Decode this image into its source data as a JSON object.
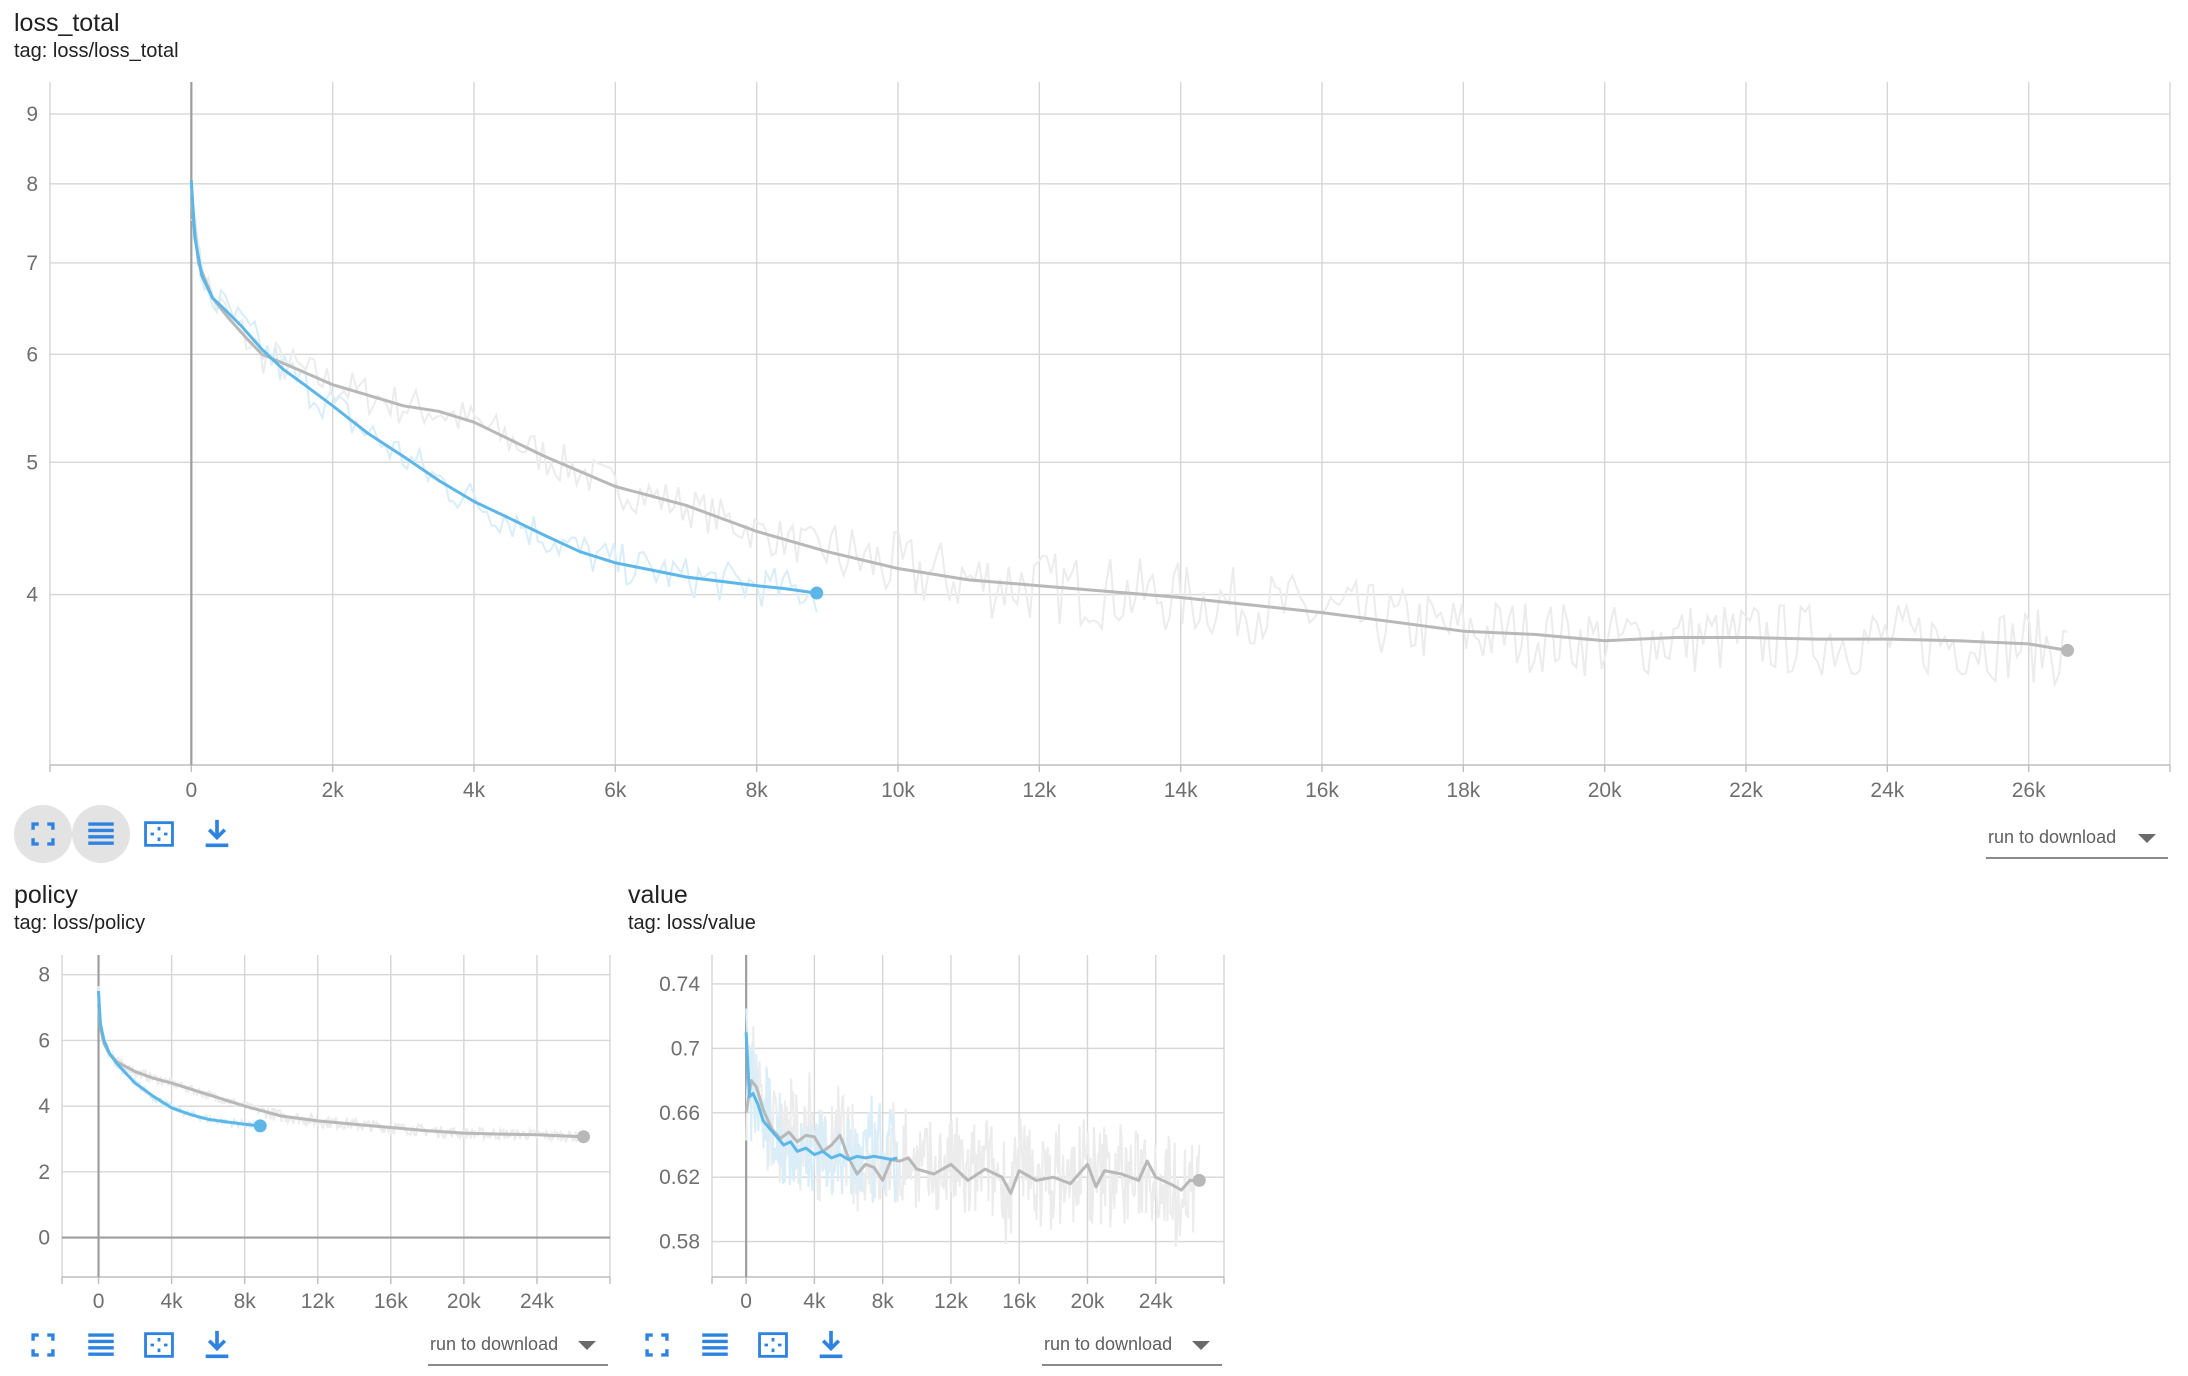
{
  "colors": {
    "run_a": "#5cb7e8",
    "run_b": "#b8b8b8",
    "run_a_raw": "#d9eef9",
    "run_b_raw": "#ececec"
  },
  "toolbar": {
    "fullscreen_icon": "fullscreen-icon",
    "legend_icon": "list-icon",
    "fit_icon": "fit-domain-icon",
    "download_icon": "download-icon",
    "download_label": "run to download"
  },
  "cards": [
    {
      "id": "loss_total",
      "title": "loss_total",
      "tag": "tag: loss/loss_total",
      "chart_data": {
        "type": "line",
        "yscale": "log",
        "xlim": [
          -2000,
          28000
        ],
        "ylim": [
          3.0,
          9.5
        ],
        "xticks": [
          0,
          2000,
          4000,
          6000,
          8000,
          10000,
          12000,
          14000,
          16000,
          18000,
          20000,
          22000,
          24000,
          26000
        ],
        "xtick_labels": [
          "0",
          "2k",
          "4k",
          "6k",
          "8k",
          "10k",
          "12k",
          "14k",
          "16k",
          "18k",
          "20k",
          "22k",
          "24k",
          "26k"
        ],
        "yticks": [
          4,
          5,
          6,
          7,
          8,
          9
        ],
        "ytick_labels": [
          "4",
          "5",
          "6",
          "7",
          "8",
          "9"
        ],
        "series": [
          {
            "color_key": "run_a",
            "end_marker": true,
            "x": [
              0,
              50,
              150,
              300,
              500,
              700,
              1000,
              1300,
              1600,
              2000,
              2500,
              3000,
              3500,
              4000,
              4500,
              5000,
              5500,
              6000,
              6500,
              7000,
              7500,
              8000,
              8400,
              8850
            ],
            "y": [
              8.05,
              7.3,
              6.85,
              6.6,
              6.45,
              6.3,
              6.05,
              5.85,
              5.7,
              5.5,
              5.25,
              5.05,
              4.85,
              4.68,
              4.55,
              4.42,
              4.3,
              4.22,
              4.17,
              4.12,
              4.09,
              4.06,
              4.04,
              4.01
            ]
          },
          {
            "color_key": "run_b",
            "end_marker": true,
            "x": [
              0,
              100,
              300,
              500,
              800,
              1000,
              1500,
              2000,
              2500,
              3000,
              3500,
              4000,
              5000,
              6000,
              7000,
              8000,
              9000,
              10000,
              11000,
              12000,
              13000,
              14000,
              15000,
              16000,
              17000,
              18000,
              19000,
              20000,
              21000,
              22000,
              23000,
              24000,
              25000,
              26000,
              26550
            ],
            "y": [
              7.8,
              7.0,
              6.6,
              6.4,
              6.15,
              6.0,
              5.85,
              5.7,
              5.6,
              5.5,
              5.45,
              5.35,
              5.05,
              4.8,
              4.65,
              4.45,
              4.3,
              4.18,
              4.1,
              4.06,
              4.02,
              3.98,
              3.93,
              3.88,
              3.82,
              3.76,
              3.74,
              3.7,
              3.72,
              3.72,
              3.71,
              3.71,
              3.7,
              3.68,
              3.64
            ]
          }
        ]
      }
    },
    {
      "id": "policy",
      "title": "policy",
      "tag": "tag: loss/policy",
      "chart_data": {
        "type": "line",
        "xlim": [
          -2000,
          28000
        ],
        "ylim": [
          -1.2,
          8.6
        ],
        "xticks": [
          0,
          4000,
          8000,
          12000,
          16000,
          20000,
          24000
        ],
        "xtick_labels": [
          "0",
          "4k",
          "8k",
          "12k",
          "16k",
          "20k",
          "24k"
        ],
        "yticks": [
          0,
          2,
          4,
          6,
          8
        ],
        "ytick_labels": [
          "0",
          "2",
          "4",
          "6",
          "8"
        ],
        "series": [
          {
            "color_key": "run_a",
            "end_marker": true,
            "x": [
              0,
              100,
              300,
              600,
              1000,
              1500,
              2000,
              3000,
              4000,
              5000,
              6000,
              7000,
              8000,
              8850
            ],
            "y": [
              7.5,
              6.5,
              6.0,
              5.6,
              5.3,
              5.0,
              4.7,
              4.3,
              3.95,
              3.75,
              3.6,
              3.52,
              3.45,
              3.4
            ]
          },
          {
            "color_key": "run_b",
            "end_marker": true,
            "x": [
              0,
              100,
              300,
              600,
              1000,
              2000,
              3000,
              4000,
              6000,
              8000,
              10000,
              12000,
              14000,
              16000,
              18000,
              20000,
              22000,
              24000,
              26550
            ],
            "y": [
              7.1,
              6.4,
              5.9,
              5.6,
              5.35,
              5.05,
              4.85,
              4.7,
              4.35,
              4.0,
              3.7,
              3.55,
              3.45,
              3.35,
              3.25,
              3.18,
              3.15,
              3.13,
              3.07
            ]
          }
        ]
      }
    },
    {
      "id": "value",
      "title": "value",
      "tag": "tag: loss/value",
      "chart_data": {
        "type": "line",
        "xlim": [
          -2000,
          28000
        ],
        "ylim": [
          0.558,
          0.758
        ],
        "xticks": [
          0,
          4000,
          8000,
          12000,
          16000,
          20000,
          24000
        ],
        "xtick_labels": [
          "0",
          "4k",
          "8k",
          "12k",
          "16k",
          "20k",
          "24k"
        ],
        "yticks": [
          0.58,
          0.62,
          0.66,
          0.7,
          0.74
        ],
        "ytick_labels": [
          "0.58",
          "0.62",
          "0.66",
          "0.7",
          "0.74"
        ],
        "series": [
          {
            "color_key": "run_a",
            "end_marker": false,
            "x": [
              0,
              200,
              400,
              700,
              1000,
              1400,
              1800,
              2200,
              2600,
              3000,
              3500,
              4000,
              4500,
              5000,
              5500,
              6000,
              6500,
              7000,
              7500,
              8000,
              8500,
              8850
            ],
            "y": [
              0.71,
              0.67,
              0.672,
              0.665,
              0.655,
              0.65,
              0.645,
              0.64,
              0.642,
              0.636,
              0.638,
              0.634,
              0.636,
              0.632,
              0.634,
              0.631,
              0.633,
              0.632,
              0.633,
              0.632,
              0.631,
              0.632
            ]
          },
          {
            "color_key": "run_b",
            "end_marker": true,
            "x": [
              0,
              300,
              600,
              1000,
              1500,
              2000,
              2500,
              3000,
              3500,
              4000,
              4500,
              5000,
              5500,
              6000,
              6500,
              7000,
              7500,
              8000,
              8500,
              9000,
              9500,
              10000,
              11000,
              12000,
              13000,
              14000,
              15000,
              15500,
              16000,
              17000,
              18000,
              19000,
              20000,
              20500,
              21000,
              22000,
              23000,
              23500,
              24000,
              25000,
              25500,
              26000,
              26550
            ],
            "y": [
              0.66,
              0.68,
              0.676,
              0.662,
              0.65,
              0.644,
              0.648,
              0.642,
              0.646,
              0.645,
              0.636,
              0.64,
              0.646,
              0.632,
              0.622,
              0.628,
              0.626,
              0.618,
              0.631,
              0.63,
              0.632,
              0.625,
              0.622,
              0.628,
              0.618,
              0.625,
              0.62,
              0.61,
              0.624,
              0.618,
              0.62,
              0.616,
              0.628,
              0.614,
              0.624,
              0.622,
              0.618,
              0.63,
              0.62,
              0.615,
              0.612,
              0.618,
              0.618
            ]
          }
        ]
      }
    }
  ]
}
